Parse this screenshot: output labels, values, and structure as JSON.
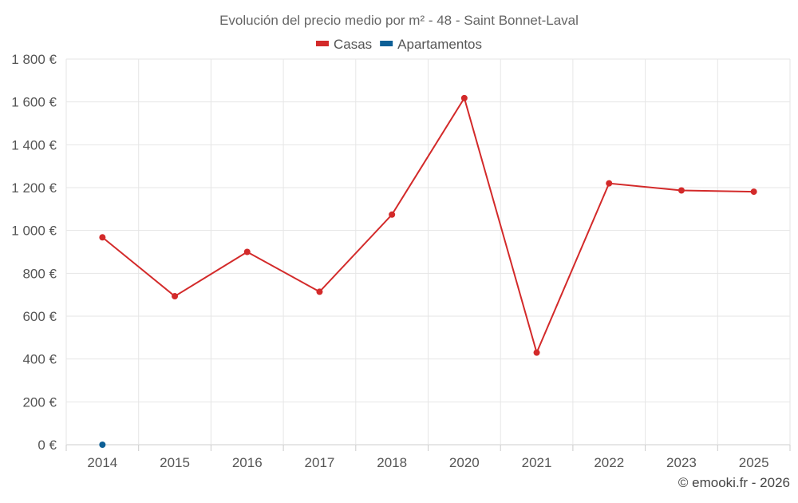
{
  "chart_data": {
    "type": "line",
    "title": "Evolución del precio medio por m² - 48 - Saint Bonnet-Laval",
    "categories": [
      "2014",
      "2015",
      "2016",
      "2017",
      "2018",
      "2020",
      "2021",
      "2022",
      "2023",
      "2025"
    ],
    "series": [
      {
        "name": "Casas",
        "color": "#d32a2a",
        "values": [
          968,
          693,
          900,
          714,
          1074,
          1618,
          430,
          1220,
          1187,
          1181
        ]
      },
      {
        "name": "Apartamentos",
        "color": "#0d5f96",
        "values": [
          0,
          null,
          null,
          null,
          null,
          null,
          null,
          null,
          null,
          null
        ]
      }
    ],
    "y_ticks": [
      "0 €",
      "200 €",
      "400 €",
      "600 €",
      "800 €",
      "1 000 €",
      "1 200 €",
      "1 400 €",
      "1 600 €",
      "1 800 €"
    ],
    "ylim": [
      0,
      1800
    ],
    "grid": true,
    "legend_position": "top-center"
  },
  "credit": "© emooki.fr - 2026"
}
